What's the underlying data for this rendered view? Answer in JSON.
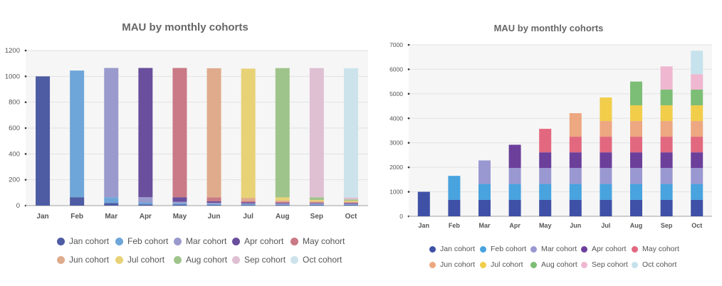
{
  "chart_data": [
    {
      "type": "bar",
      "stacked": true,
      "title": "MAU by monthly cohorts",
      "xlabel": "",
      "ylabel": "",
      "ylim": [
        0,
        1200
      ],
      "yticks": [
        "0",
        "200",
        "400",
        "600",
        "800",
        "1000",
        "1200"
      ],
      "grid": true,
      "legend": "bottom",
      "categories": [
        "Jan",
        "Feb",
        "Mar",
        "Apr",
        "May",
        "Jun",
        "Jul",
        "Aug",
        "Sep",
        "Oct"
      ],
      "series": [
        {
          "name": "Jan cohort",
          "color": "#4e5ca3",
          "values": [
            1000,
            65,
            20,
            10,
            8,
            5,
            5,
            5,
            5,
            5
          ]
        },
        {
          "name": "Feb cohort",
          "color": "#6fa6d9",
          "values": [
            0,
            980,
            45,
            15,
            10,
            8,
            6,
            5,
            5,
            5
          ]
        },
        {
          "name": "Mar cohort",
          "color": "#9b9acd",
          "values": [
            0,
            0,
            1000,
            40,
            12,
            8,
            6,
            5,
            5,
            4
          ]
        },
        {
          "name": "Apr cohort",
          "color": "#6a4f9d",
          "values": [
            0,
            0,
            0,
            1000,
            35,
            12,
            8,
            6,
            5,
            5
          ]
        },
        {
          "name": "May cohort",
          "color": "#c97a86",
          "values": [
            0,
            0,
            0,
            0,
            1000,
            30,
            10,
            8,
            6,
            5
          ]
        },
        {
          "name": "Jun cohort",
          "color": "#dfab8c",
          "values": [
            0,
            0,
            0,
            0,
            0,
            1000,
            25,
            10,
            8,
            6
          ]
        },
        {
          "name": "Jul cohort",
          "color": "#e8d276",
          "values": [
            0,
            0,
            0,
            0,
            0,
            0,
            1000,
            25,
            10,
            8
          ]
        },
        {
          "name": "Aug cohort",
          "color": "#9fc48b",
          "values": [
            0,
            0,
            0,
            0,
            0,
            0,
            0,
            1000,
            20,
            10
          ]
        },
        {
          "name": "Sep cohort",
          "color": "#dfc0d2",
          "values": [
            0,
            0,
            0,
            0,
            0,
            0,
            0,
            0,
            1000,
            15
          ]
        },
        {
          "name": "Oct cohort",
          "color": "#cde3ec",
          "values": [
            0,
            0,
            0,
            0,
            0,
            0,
            0,
            0,
            0,
            1000
          ]
        }
      ]
    },
    {
      "type": "bar",
      "stacked": true,
      "title": "MAU by monthly cohorts",
      "xlabel": "",
      "ylabel": "",
      "ylim": [
        0,
        7000
      ],
      "yticks": [
        "0",
        "1000",
        "2000",
        "3000",
        "4000",
        "5000",
        "6000",
        "7000"
      ],
      "grid": true,
      "legend": "bottom",
      "categories": [
        "Jan",
        "Feb",
        "Mar",
        "Apr",
        "May",
        "Jun",
        "Jul",
        "Aug",
        "Sep",
        "Oct"
      ],
      "series": [
        {
          "name": "Jan cohort",
          "color": "#3f51a6",
          "values": [
            1000,
            670,
            670,
            670,
            670,
            670,
            670,
            670,
            670,
            670
          ]
        },
        {
          "name": "Feb cohort",
          "color": "#48a3de",
          "values": [
            0,
            980,
            650,
            650,
            650,
            650,
            650,
            650,
            650,
            650
          ]
        },
        {
          "name": "Mar cohort",
          "color": "#9a98d1",
          "values": [
            0,
            0,
            960,
            650,
            650,
            650,
            650,
            650,
            650,
            650
          ]
        },
        {
          "name": "Apr cohort",
          "color": "#6c3f9b",
          "values": [
            0,
            0,
            0,
            950,
            640,
            640,
            640,
            640,
            640,
            640
          ]
        },
        {
          "name": "May cohort",
          "color": "#e2687f",
          "values": [
            0,
            0,
            0,
            0,
            960,
            640,
            640,
            640,
            640,
            640
          ]
        },
        {
          "name": "Jun cohort",
          "color": "#eda781",
          "values": [
            0,
            0,
            0,
            0,
            0,
            960,
            640,
            640,
            640,
            640
          ]
        },
        {
          "name": "Jul cohort",
          "color": "#f1cd4a",
          "values": [
            0,
            0,
            0,
            0,
            0,
            0,
            960,
            640,
            640,
            640
          ]
        },
        {
          "name": "Aug cohort",
          "color": "#7cbe75",
          "values": [
            0,
            0,
            0,
            0,
            0,
            0,
            0,
            970,
            640,
            640
          ]
        },
        {
          "name": "Sep cohort",
          "color": "#efb7d0",
          "values": [
            0,
            0,
            0,
            0,
            0,
            0,
            0,
            0,
            950,
            630
          ]
        },
        {
          "name": "Oct cohort",
          "color": "#c6e2ec",
          "values": [
            0,
            0,
            0,
            0,
            0,
            0,
            0,
            0,
            0,
            960
          ]
        }
      ]
    }
  ]
}
